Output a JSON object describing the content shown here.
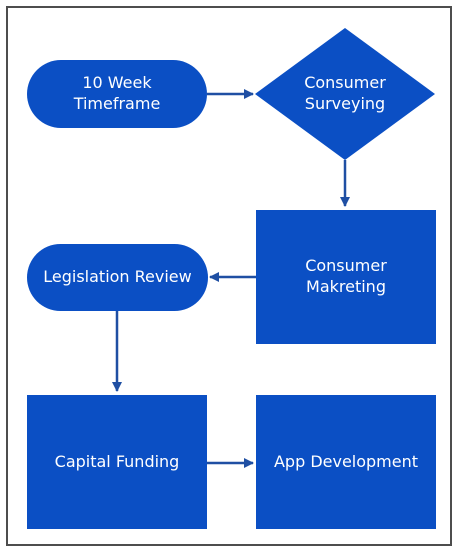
{
  "colors": {
    "node_fill": "#0b4fc4",
    "arrow": "#1f4fa3",
    "frame": "#4d4d4d",
    "text": "#ffffff"
  },
  "nodes": {
    "timeframe": {
      "label": "10 Week\nTimeframe",
      "shape": "terminator"
    },
    "surveying": {
      "label": "Consumer\nSurveying",
      "shape": "decision"
    },
    "marketing": {
      "label": "Consumer\nMakreting",
      "shape": "process"
    },
    "legislation": {
      "label": "Legislation Review",
      "shape": "terminator"
    },
    "funding": {
      "label": "Capital Funding",
      "shape": "process"
    },
    "app_dev": {
      "label": "App Development",
      "shape": "process"
    }
  },
  "edges": [
    {
      "from": "timeframe",
      "to": "surveying"
    },
    {
      "from": "surveying",
      "to": "marketing"
    },
    {
      "from": "marketing",
      "to": "legislation"
    },
    {
      "from": "legislation",
      "to": "funding"
    },
    {
      "from": "funding",
      "to": "app_dev"
    }
  ]
}
